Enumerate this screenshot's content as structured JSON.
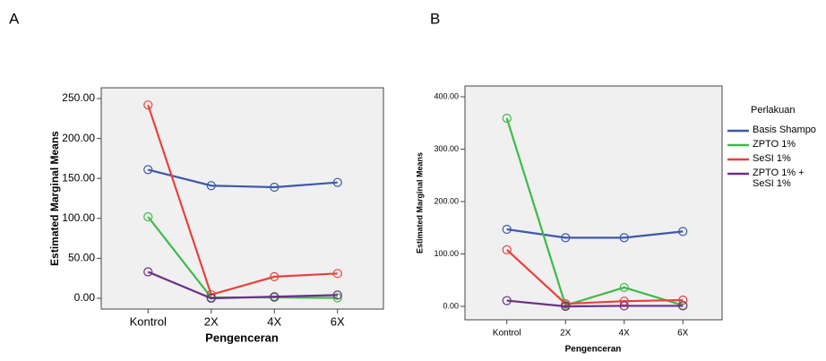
{
  "chart_data": [
    {
      "type": "line",
      "panel_label": "A",
      "x_label": "Pengenceran",
      "y_label": "Estimated Marginal Means",
      "categories": [
        "Kontrol",
        "2X",
        "4X",
        "6X"
      ],
      "ylim": [
        -13.5,
        263.5
      ],
      "yticks": [
        {
          "value": 0,
          "label": "0.00"
        },
        {
          "value": 50,
          "label": "50.00"
        },
        {
          "value": 100,
          "label": "100.00"
        },
        {
          "value": 150,
          "label": "150.00"
        },
        {
          "value": 200,
          "label": "200.00"
        },
        {
          "value": 250,
          "label": "250.00"
        }
      ],
      "series": [
        {
          "color": "#3e58ac",
          "values": [
            161,
            141,
            139,
            145
          ]
        },
        {
          "color": "#3fb94a",
          "values": [
            102,
            1,
            1,
            0.5
          ]
        },
        {
          "color": "#e8413c",
          "values": [
            242,
            4.5,
            27,
            31
          ]
        },
        {
          "color": "#6b2e86",
          "values": [
            33,
            0,
            2,
            4
          ]
        }
      ]
    },
    {
      "type": "line",
      "panel_label": "B",
      "x_label": "Pengenceran",
      "y_label": "Estimated Marginal Means",
      "categories": [
        "Kontrol",
        "2X",
        "4X",
        "6X"
      ],
      "ylim": [
        -25.6,
        420.5
      ],
      "yticks": [
        {
          "value": 0,
          "label": "0.00"
        },
        {
          "value": 100,
          "label": "100.00"
        },
        {
          "value": 200,
          "label": "200.00"
        },
        {
          "value": 300,
          "label": "300.00"
        },
        {
          "value": 400,
          "label": "400.00"
        }
      ],
      "legend_title": "Perlakuan",
      "series": [
        {
          "name": "Basis Shampo",
          "color": "#3e58ac",
          "values": [
            147,
            131,
            131,
            143
          ]
        },
        {
          "name": "ZPTO 1%",
          "color": "#3fb94a",
          "values": [
            359,
            2,
            36,
            2
          ]
        },
        {
          "name": "SeSI 1%",
          "color": "#e8413c",
          "values": [
            108,
            5,
            10,
            12
          ]
        },
        {
          "name": "ZPTO 1% + SeSI 1%",
          "color": "#6b2e86",
          "values": [
            11,
            0,
            1,
            1
          ]
        }
      ]
    }
  ]
}
